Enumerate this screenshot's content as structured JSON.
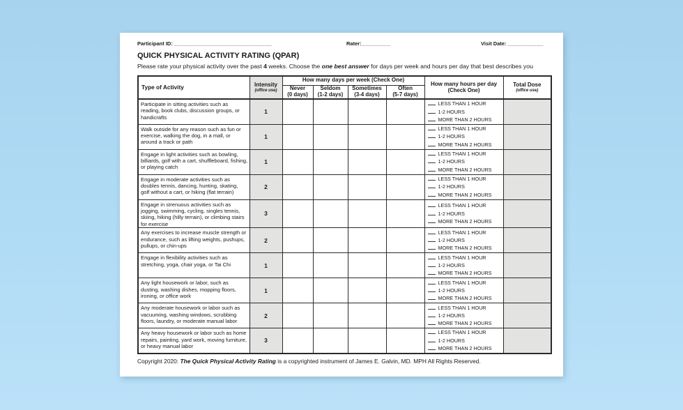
{
  "page": {
    "fields": {
      "participant_label": "Participant ID:",
      "participant_line": "______________________________",
      "rater_label": "Rater:",
      "rater_line": "_________",
      "visit_label": "Visit Date:",
      "visit_line": "___________"
    },
    "title": "QUICK PHYSICAL ACTIVITY RATING (QPAR)",
    "subtitle": {
      "pre": "Please rate your physical activity over the past ",
      "num": "4",
      "mid": " weeks. Choose the ",
      "emph": "one best answer",
      "post": " for days per week and hours per day that best describes you"
    },
    "table": {
      "headers": {
        "type_of_activity": "Type of Activity",
        "intensity": "Intensity",
        "intensity_sub": "(office use)",
        "days_group": "How many days per week (Check One)",
        "days_cols": [
          {
            "label": "Never",
            "sub": "(0 days)"
          },
          {
            "label": "Seldom",
            "sub": "(1-2 days)"
          },
          {
            "label": "Sometimes",
            "sub": "(3-4 days)"
          },
          {
            "label": "Often",
            "sub": "(5-7 days)"
          }
        ],
        "hours_group_line1": "How many hours per day",
        "hours_group_line2": "(Check One)",
        "total_dose": "Total Dose",
        "total_dose_sub": "(office use)"
      },
      "hours_options": [
        "LESS THAN 1 HOUR",
        "1-2 HOURS",
        "MORE THAN 2 HOURS"
      ],
      "rows": [
        {
          "activity": "Participate in sitting activities such as reading, book clubs, discussion groups, or handicrafts",
          "intensity": "1"
        },
        {
          "activity": "Walk outside for any reason such as fun or exercise, walking the dog, in a mall, or around a track or path",
          "intensity": "1"
        },
        {
          "activity": "Engage in light activities such as bowling, billiards, golf with a cart, shuffleboard, fishing, or playing catch",
          "intensity": "1"
        },
        {
          "activity": "Engage in moderate activities such as doubles tennis, dancing, hunting, skating, golf without a cart, or hiking (flat terrain)",
          "intensity": "2"
        },
        {
          "activity": "Engage in strenuous activities such as jogging, swimming, cycling, singles tennis, skiing, hiking (hilly terrain), or climbing stairs for exercise",
          "intensity": "3"
        },
        {
          "activity": "Any exercises to increase muscle strength or endurance, such as lifting weights, pushups, pullups, or chin-ups",
          "intensity": "2"
        },
        {
          "activity": "Engage in flexibility activities such as stretching, yoga, chair yoga, or Tai Chi",
          "intensity": "1"
        },
        {
          "activity": "Any light housework or labor, such as dusting, washing dishes, mopping floors, ironing, or office work",
          "intensity": "1"
        },
        {
          "activity": "Any moderate housework or labor such as vacuuming, washing windows, scrubbing floors, laundry, or moderate manual labor",
          "intensity": "2"
        },
        {
          "activity": "Any heavy housework or labor such as home repairs, painting, yard work, moving furniture, or heavy manual labor",
          "intensity": "3"
        }
      ]
    },
    "footer": {
      "pre": "Copyright 2020: ",
      "emph": "The Quick Physical Activity Rating",
      "post": " is a copyrighted instrument of James E. Galvin, MD. MPH All Rights Reserved."
    },
    "colors": {
      "background_blue": "#aedaf4",
      "shaded_cell": "#e3e3e1",
      "border": "#2a2a2a"
    }
  }
}
